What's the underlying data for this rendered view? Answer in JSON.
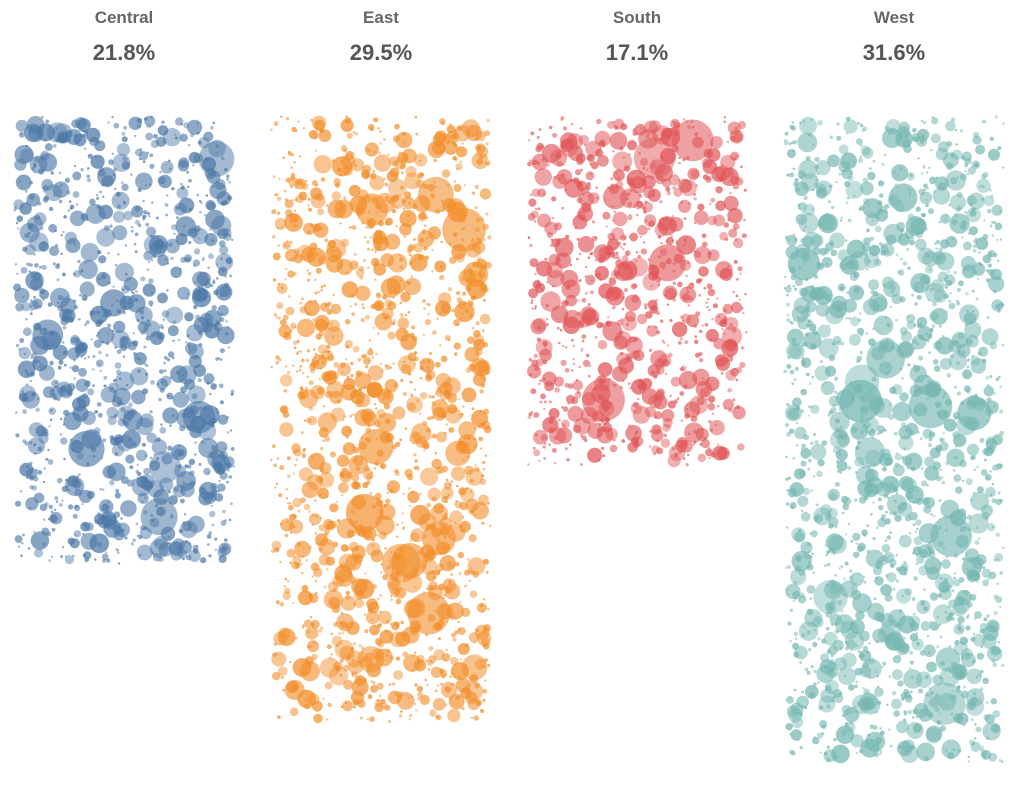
{
  "chart_data": {
    "type": "scatter",
    "title": "",
    "categories": [
      "Central",
      "East",
      "South",
      "West"
    ],
    "series": [
      {
        "name": "Central",
        "value_label": "21.8%",
        "value": 21.8,
        "color": "#4e79a7"
      },
      {
        "name": "East",
        "value_label": "29.5%",
        "value": 29.5,
        "color": "#f28e2b"
      },
      {
        "name": "South",
        "value_label": "17.1%",
        "value": 17.1,
        "color": "#e15759"
      },
      {
        "name": "West",
        "value_label": "31.6%",
        "value": 31.6,
        "color": "#76b7b2"
      }
    ],
    "grid": false,
    "legend": "none"
  }
}
